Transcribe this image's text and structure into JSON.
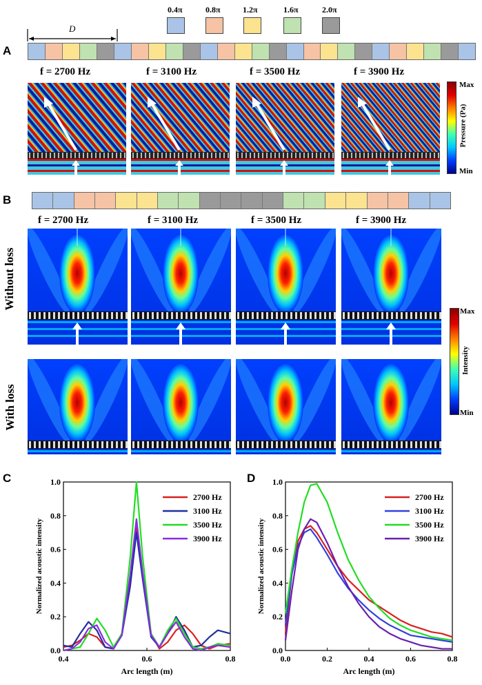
{
  "panels": {
    "A": "A",
    "B": "B",
    "C": "C",
    "D": "D"
  },
  "phase_legend": [
    {
      "label": "0.4π",
      "color": "#a9c4e6"
    },
    {
      "label": "0.8π",
      "color": "#f6c3a5"
    },
    {
      "label": "1.2π",
      "color": "#fbe38f"
    },
    {
      "label": "1.6π",
      "color": "#bfe2b0"
    },
    {
      "label": "2.0π",
      "color": "#9a9a9a"
    }
  ],
  "period_label": "D",
  "frequencies": [
    "f = 2700 Hz",
    "f = 3100 Hz",
    "f = 3500 Hz",
    "f = 3900 Hz"
  ],
  "pressure_colorbar": {
    "max": "Max",
    "min": "Min",
    "title": "Pressure (Pa)"
  },
  "intensity_colorbar": {
    "max": "Max",
    "min": "Min",
    "title": "Intensity"
  },
  "row_labels": {
    "without_loss": "Without loss",
    "with_loss": "With loss"
  },
  "colors": {
    "c2700": "#d92020",
    "c3100": "#1f2fa0",
    "c3500": "#22dd22",
    "c3900": "#8a2be2"
  },
  "chart_data": [
    {
      "type": "line",
      "title": "",
      "xlabel": "Arc length (m)",
      "ylabel": "Normalized acoustic intensity",
      "xlim": [
        0.4,
        0.8
      ],
      "ylim": [
        0.0,
        1.0
      ],
      "xticks": [
        "0.4",
        "0.6",
        "0.8"
      ],
      "yticks": [
        "0.0",
        "0.2",
        "0.4",
        "0.6",
        "0.8",
        "1.0"
      ],
      "legend_position": "top-right",
      "series": [
        {
          "name": "2700 Hz",
          "color": "#d92020",
          "x": [
            0.4,
            0.42,
            0.44,
            0.46,
            0.48,
            0.5,
            0.52,
            0.54,
            0.56,
            0.575,
            0.59,
            0.61,
            0.63,
            0.65,
            0.67,
            0.69,
            0.71,
            0.73,
            0.75,
            0.77,
            0.8
          ],
          "y": [
            0.02,
            0.03,
            0.06,
            0.1,
            0.08,
            0.02,
            0.01,
            0.1,
            0.4,
            0.73,
            0.45,
            0.1,
            0.01,
            0.05,
            0.12,
            0.15,
            0.1,
            0.03,
            0.01,
            0.03,
            0.04
          ]
        },
        {
          "name": "3100 Hz",
          "color": "#1f2fa0",
          "x": [
            0.4,
            0.42,
            0.44,
            0.46,
            0.48,
            0.5,
            0.52,
            0.54,
            0.56,
            0.575,
            0.59,
            0.61,
            0.63,
            0.65,
            0.67,
            0.69,
            0.71,
            0.73,
            0.75,
            0.77,
            0.8
          ],
          "y": [
            0.03,
            0.02,
            0.1,
            0.17,
            0.12,
            0.02,
            0.01,
            0.09,
            0.38,
            0.7,
            0.42,
            0.08,
            0.02,
            0.1,
            0.2,
            0.12,
            0.02,
            0.03,
            0.08,
            0.12,
            0.1
          ]
        },
        {
          "name": "3500 Hz",
          "color": "#22dd22",
          "x": [
            0.4,
            0.42,
            0.44,
            0.46,
            0.48,
            0.5,
            0.52,
            0.54,
            0.56,
            0.575,
            0.59,
            0.61,
            0.63,
            0.65,
            0.67,
            0.69,
            0.71,
            0.73,
            0.75,
            0.77,
            0.8
          ],
          "y": [
            0.0,
            0.01,
            0.02,
            0.1,
            0.19,
            0.12,
            0.02,
            0.1,
            0.55,
            1.0,
            0.55,
            0.1,
            0.02,
            0.12,
            0.19,
            0.1,
            0.02,
            0.01,
            0.02,
            0.04,
            0.03
          ]
        },
        {
          "name": "3900 Hz",
          "color": "#8a2be2",
          "x": [
            0.4,
            0.42,
            0.44,
            0.46,
            0.48,
            0.5,
            0.52,
            0.54,
            0.56,
            0.575,
            0.59,
            0.61,
            0.63,
            0.65,
            0.67,
            0.69,
            0.71,
            0.73,
            0.75,
            0.77,
            0.8
          ],
          "y": [
            0.0,
            0.01,
            0.05,
            0.13,
            0.15,
            0.05,
            0.01,
            0.09,
            0.45,
            0.78,
            0.46,
            0.09,
            0.02,
            0.1,
            0.17,
            0.08,
            0.01,
            0.0,
            0.02,
            0.03,
            0.02
          ]
        }
      ]
    },
    {
      "type": "line",
      "title": "",
      "xlabel": "Arc length (m)",
      "ylabel": "Normalized acoustic intensity",
      "xlim": [
        0.0,
        0.8
      ],
      "ylim": [
        0.0,
        1.0
      ],
      "xticks": [
        "0.0",
        "0.2",
        "0.4",
        "0.6",
        "0.8"
      ],
      "yticks": [
        "0.0",
        "0.2",
        "0.4",
        "0.6",
        "0.8",
        "1.0"
      ],
      "legend_position": "top-right",
      "series": [
        {
          "name": "2700 Hz",
          "color": "#d92020",
          "x": [
            0.0,
            0.03,
            0.06,
            0.09,
            0.12,
            0.15,
            0.2,
            0.25,
            0.3,
            0.35,
            0.4,
            0.45,
            0.5,
            0.55,
            0.6,
            0.65,
            0.7,
            0.75,
            0.8
          ],
          "y": [
            0.1,
            0.45,
            0.65,
            0.72,
            0.74,
            0.7,
            0.6,
            0.5,
            0.42,
            0.36,
            0.3,
            0.26,
            0.22,
            0.18,
            0.15,
            0.13,
            0.11,
            0.1,
            0.08
          ]
        },
        {
          "name": "3100 Hz",
          "color": "#3040e0",
          "x": [
            0.0,
            0.03,
            0.06,
            0.09,
            0.12,
            0.15,
            0.2,
            0.25,
            0.3,
            0.35,
            0.4,
            0.45,
            0.5,
            0.55,
            0.6,
            0.65,
            0.7,
            0.75,
            0.8
          ],
          "y": [
            0.15,
            0.45,
            0.62,
            0.7,
            0.72,
            0.67,
            0.57,
            0.46,
            0.37,
            0.3,
            0.24,
            0.19,
            0.15,
            0.12,
            0.09,
            0.08,
            0.07,
            0.06,
            0.05
          ]
        },
        {
          "name": "3500 Hz",
          "color": "#22dd22",
          "x": [
            0.0,
            0.03,
            0.06,
            0.09,
            0.12,
            0.15,
            0.2,
            0.25,
            0.3,
            0.35,
            0.4,
            0.45,
            0.5,
            0.55,
            0.6,
            0.65,
            0.7,
            0.75,
            0.8
          ],
          "y": [
            0.22,
            0.48,
            0.7,
            0.88,
            0.98,
            0.99,
            0.88,
            0.7,
            0.54,
            0.42,
            0.32,
            0.25,
            0.19,
            0.15,
            0.12,
            0.1,
            0.08,
            0.07,
            0.06
          ]
        },
        {
          "name": "3900 Hz",
          "color": "#6a1fb0",
          "x": [
            0.0,
            0.03,
            0.06,
            0.09,
            0.12,
            0.15,
            0.2,
            0.25,
            0.3,
            0.35,
            0.4,
            0.45,
            0.5,
            0.55,
            0.6,
            0.65,
            0.7,
            0.75,
            0.8
          ],
          "y": [
            0.06,
            0.35,
            0.6,
            0.72,
            0.78,
            0.76,
            0.64,
            0.5,
            0.38,
            0.28,
            0.2,
            0.14,
            0.1,
            0.07,
            0.05,
            0.03,
            0.02,
            0.01,
            0.01
          ]
        }
      ]
    }
  ]
}
